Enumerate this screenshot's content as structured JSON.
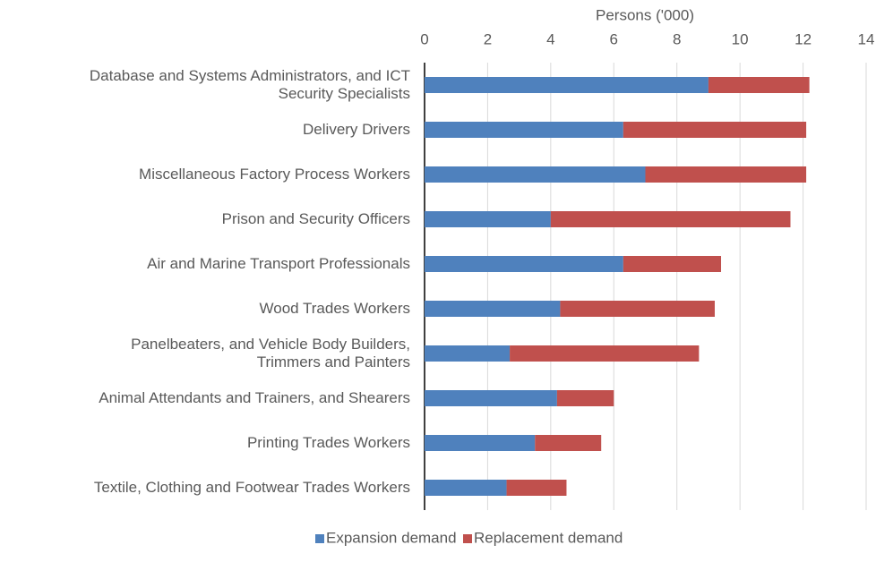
{
  "chart_data": {
    "type": "stacked_bar_horizontal",
    "xlabel": "Persons ('000)",
    "categories": [
      "Database and Systems Administrators, and ICT\nSecurity Specialists",
      "Delivery Drivers",
      "Miscellaneous Factory Process Workers",
      "Prison and Security Officers",
      "Air and Marine Transport Professionals",
      "Wood Trades Workers",
      "Panelbeaters, and Vehicle Body Builders,\nTrimmers and Painters",
      "Animal Attendants and Trainers, and Shearers",
      "Printing Trades Workers",
      "Textile, Clothing and Footwear Trades Workers"
    ],
    "series": [
      {
        "name": "Expansion demand",
        "color": "#4f81bd",
        "values": [
          9.0,
          6.3,
          7.0,
          4.0,
          6.3,
          4.3,
          2.7,
          4.2,
          3.5,
          2.6
        ]
      },
      {
        "name": "Replacement demand",
        "color": "#c0504d",
        "values": [
          3.2,
          5.8,
          5.1,
          7.6,
          3.1,
          4.9,
          6.0,
          1.8,
          2.1,
          1.9
        ]
      }
    ],
    "xlim": [
      0,
      14
    ],
    "xticks": [
      0,
      2,
      4,
      6,
      8,
      10,
      12,
      14
    ],
    "grid": true,
    "legend": "bottom"
  }
}
